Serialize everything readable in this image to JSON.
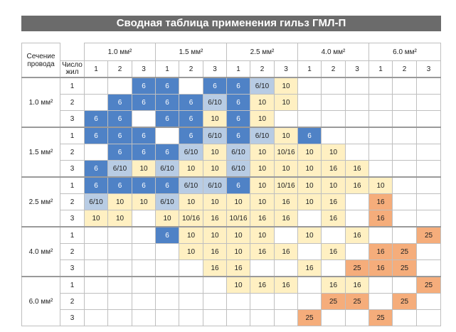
{
  "title": "Сводная таблица применения гильз ГМЛ-П",
  "corner": {
    "section_label_line1": "Сечение",
    "section_label_line2": "провода",
    "cores_label_line1": "Число",
    "cores_label_line2": "жил"
  },
  "column_groups": [
    "1.0 мм²",
    "1.5 мм²",
    "2.5 мм²",
    "4.0 мм²",
    "6.0 мм²"
  ],
  "column_cores": [
    "1",
    "2",
    "3"
  ],
  "row_groups": [
    {
      "section": "1.0 мм²",
      "rows": [
        {
          "cores": "1",
          "cells": [
            [
              "",
              ""
            ],
            [
              "",
              ""
            ],
            [
              "6",
              "blue"
            ],
            [
              "6",
              "blue"
            ],
            [
              "",
              ""
            ],
            [
              "6",
              "blue"
            ],
            [
              "6",
              "blue"
            ],
            [
              "6/10",
              "lblue"
            ],
            [
              "10",
              "yellow"
            ],
            [
              "",
              ""
            ],
            [
              "",
              ""
            ],
            [
              "",
              ""
            ],
            [
              "",
              ""
            ],
            [
              "",
              ""
            ],
            [
              "",
              ""
            ]
          ]
        },
        {
          "cores": "2",
          "cells": [
            [
              "",
              ""
            ],
            [
              "6",
              "blue"
            ],
            [
              "6",
              "blue"
            ],
            [
              "6",
              "blue"
            ],
            [
              "6",
              "blue"
            ],
            [
              "6/10",
              "lblue"
            ],
            [
              "6",
              "blue"
            ],
            [
              "10",
              "yellow"
            ],
            [
              "10",
              "yellow"
            ],
            [
              "",
              ""
            ],
            [
              "",
              ""
            ],
            [
              "",
              ""
            ],
            [
              "",
              ""
            ],
            [
              "",
              ""
            ],
            [
              "",
              ""
            ]
          ]
        },
        {
          "cores": "3",
          "cells": [
            [
              "6",
              "blue"
            ],
            [
              "6",
              "blue"
            ],
            [
              "",
              ""
            ],
            [
              "6",
              "blue"
            ],
            [
              "6",
              "blue"
            ],
            [
              "10",
              "yellow"
            ],
            [
              "6",
              "blue"
            ],
            [
              "10",
              "yellow"
            ],
            [
              "",
              ""
            ],
            [
              "",
              ""
            ],
            [
              "",
              ""
            ],
            [
              "",
              ""
            ],
            [
              "",
              ""
            ],
            [
              "",
              ""
            ],
            [
              "",
              ""
            ]
          ]
        }
      ]
    },
    {
      "section": "1.5 мм²",
      "rows": [
        {
          "cores": "1",
          "cells": [
            [
              "6",
              "blue"
            ],
            [
              "6",
              "blue"
            ],
            [
              "6",
              "blue"
            ],
            [
              "",
              ""
            ],
            [
              "6",
              "blue"
            ],
            [
              "6/10",
              "lblue"
            ],
            [
              "6",
              "blue"
            ],
            [
              "6/10",
              "lblue"
            ],
            [
              "10",
              "yellow"
            ],
            [
              "6",
              "blue"
            ],
            [
              "",
              ""
            ],
            [
              "",
              ""
            ],
            [
              "",
              ""
            ],
            [
              "",
              ""
            ],
            [
              "",
              ""
            ]
          ]
        },
        {
          "cores": "2",
          "cells": [
            [
              "",
              ""
            ],
            [
              "6",
              "blue"
            ],
            [
              "6",
              "blue"
            ],
            [
              "6",
              "blue"
            ],
            [
              "6/10",
              "lblue"
            ],
            [
              "10",
              "yellow"
            ],
            [
              "6/10",
              "lblue"
            ],
            [
              "10",
              "yellow"
            ],
            [
              "10/16",
              "yellow"
            ],
            [
              "10",
              "yellow"
            ],
            [
              "10",
              "yellow"
            ],
            [
              "",
              ""
            ],
            [
              "",
              ""
            ],
            [
              "",
              ""
            ],
            [
              "",
              ""
            ]
          ]
        },
        {
          "cores": "3",
          "cells": [
            [
              "6",
              "blue"
            ],
            [
              "6/10",
              "lblue"
            ],
            [
              "10",
              "yellow"
            ],
            [
              "6/10",
              "lblue"
            ],
            [
              "10",
              "yellow"
            ],
            [
              "10",
              "yellow"
            ],
            [
              "6/10",
              "lblue"
            ],
            [
              "10",
              "yellow"
            ],
            [
              "10",
              "yellow"
            ],
            [
              "10",
              "yellow"
            ],
            [
              "16",
              "yellow"
            ],
            [
              "16",
              "yellow"
            ],
            [
              "",
              ""
            ],
            [
              "",
              ""
            ],
            [
              "",
              ""
            ]
          ]
        }
      ]
    },
    {
      "section": "2.5 мм²",
      "rows": [
        {
          "cores": "1",
          "cells": [
            [
              "6",
              "blue"
            ],
            [
              "6",
              "blue"
            ],
            [
              "6",
              "blue"
            ],
            [
              "6",
              "blue"
            ],
            [
              "6/10",
              "lblue"
            ],
            [
              "6/10",
              "lblue"
            ],
            [
              "6",
              "blue"
            ],
            [
              "10",
              "yellow"
            ],
            [
              "10/16",
              "yellow"
            ],
            [
              "10",
              "yellow"
            ],
            [
              "10",
              "yellow"
            ],
            [
              "16",
              "yellow"
            ],
            [
              "10",
              "yellow"
            ],
            [
              "",
              ""
            ],
            [
              "",
              ""
            ]
          ]
        },
        {
          "cores": "2",
          "cells": [
            [
              "6/10",
              "lblue"
            ],
            [
              "10",
              "yellow"
            ],
            [
              "10",
              "yellow"
            ],
            [
              "6/10",
              "lblue"
            ],
            [
              "10",
              "yellow"
            ],
            [
              "10",
              "yellow"
            ],
            [
              "10",
              "yellow"
            ],
            [
              "10",
              "yellow"
            ],
            [
              "16",
              "yellow"
            ],
            [
              "10",
              "yellow"
            ],
            [
              "16",
              "yellow"
            ],
            [
              "",
              ""
            ],
            [
              "16",
              "orange"
            ],
            [
              "",
              ""
            ],
            [
              "",
              ""
            ]
          ]
        },
        {
          "cores": "3",
          "cells": [
            [
              "10",
              "yellow"
            ],
            [
              "10",
              "yellow"
            ],
            [
              "",
              ""
            ],
            [
              "10",
              "yellow"
            ],
            [
              "10/16",
              "yellow"
            ],
            [
              "16",
              "yellow"
            ],
            [
              "10/16",
              "yellow"
            ],
            [
              "16",
              "yellow"
            ],
            [
              "16",
              "yellow"
            ],
            [
              "",
              ""
            ],
            [
              "16",
              "yellow"
            ],
            [
              "",
              ""
            ],
            [
              "16",
              "orange"
            ],
            [
              "",
              ""
            ],
            [
              "",
              ""
            ]
          ]
        }
      ]
    },
    {
      "section": "4.0 мм²",
      "rows": [
        {
          "cores": "1",
          "cells": [
            [
              "",
              ""
            ],
            [
              "",
              ""
            ],
            [
              "",
              ""
            ],
            [
              "6",
              "blue"
            ],
            [
              "10",
              "yellow"
            ],
            [
              "10",
              "yellow"
            ],
            [
              "10",
              "yellow"
            ],
            [
              "10",
              "yellow"
            ],
            [
              "",
              ""
            ],
            [
              "10",
              "yellow"
            ],
            [
              "",
              ""
            ],
            [
              "16",
              "yellow"
            ],
            [
              "",
              ""
            ],
            [
              "",
              ""
            ],
            [
              "25",
              "orange"
            ]
          ]
        },
        {
          "cores": "2",
          "cells": [
            [
              "",
              ""
            ],
            [
              "",
              ""
            ],
            [
              "",
              ""
            ],
            [
              "",
              ""
            ],
            [
              "10",
              "yellow"
            ],
            [
              "16",
              "yellow"
            ],
            [
              "10",
              "yellow"
            ],
            [
              "16",
              "yellow"
            ],
            [
              "16",
              "yellow"
            ],
            [
              "",
              ""
            ],
            [
              "16",
              "yellow"
            ],
            [
              "",
              ""
            ],
            [
              "16",
              "orange"
            ],
            [
              "25",
              "orange"
            ],
            [
              "",
              ""
            ]
          ]
        },
        {
          "cores": "3",
          "cells": [
            [
              "",
              ""
            ],
            [
              "",
              ""
            ],
            [
              "",
              ""
            ],
            [
              "",
              ""
            ],
            [
              "",
              ""
            ],
            [
              "16",
              "yellow"
            ],
            [
              "16",
              "yellow"
            ],
            [
              "",
              ""
            ],
            [
              "",
              ""
            ],
            [
              "16",
              "yellow"
            ],
            [
              "",
              ""
            ],
            [
              "25",
              "orange"
            ],
            [
              "16",
              "orange"
            ],
            [
              "25",
              "orange"
            ],
            [
              "",
              ""
            ]
          ]
        }
      ]
    },
    {
      "section": "6.0 мм²",
      "rows": [
        {
          "cores": "1",
          "cells": [
            [
              "",
              ""
            ],
            [
              "",
              ""
            ],
            [
              "",
              ""
            ],
            [
              "",
              ""
            ],
            [
              "",
              ""
            ],
            [
              "",
              ""
            ],
            [
              "10",
              "yellow"
            ],
            [
              "16",
              "yellow"
            ],
            [
              "16",
              "yellow"
            ],
            [
              "",
              ""
            ],
            [
              "16",
              "yellow"
            ],
            [
              "16",
              "yellow"
            ],
            [
              "",
              ""
            ],
            [
              "",
              ""
            ],
            [
              "25",
              "orange"
            ]
          ]
        },
        {
          "cores": "2",
          "cells": [
            [
              "",
              ""
            ],
            [
              "",
              ""
            ],
            [
              "",
              ""
            ],
            [
              "",
              ""
            ],
            [
              "",
              ""
            ],
            [
              "",
              ""
            ],
            [
              "",
              ""
            ],
            [
              "",
              ""
            ],
            [
              "",
              ""
            ],
            [
              "",
              ""
            ],
            [
              "25",
              "orange"
            ],
            [
              "25",
              "orange"
            ],
            [
              "",
              ""
            ],
            [
              "25",
              "orange"
            ],
            [
              "",
              ""
            ]
          ]
        },
        {
          "cores": "3",
          "cells": [
            [
              "",
              ""
            ],
            [
              "",
              ""
            ],
            [
              "",
              ""
            ],
            [
              "",
              ""
            ],
            [
              "",
              ""
            ],
            [
              "",
              ""
            ],
            [
              "",
              ""
            ],
            [
              "",
              ""
            ],
            [
              "",
              ""
            ],
            [
              "25",
              "orange"
            ],
            [
              "",
              ""
            ],
            [
              "",
              ""
            ],
            [
              "25",
              "orange"
            ],
            [
              "",
              ""
            ],
            [
              "",
              ""
            ]
          ]
        }
      ]
    }
  ],
  "colors": {
    "blue": "#4f82c6",
    "light_blue": "#b8cce4",
    "yellow": "#fff0c2",
    "orange": "#f5ad7b",
    "title_bar": "#6b6b6b"
  }
}
